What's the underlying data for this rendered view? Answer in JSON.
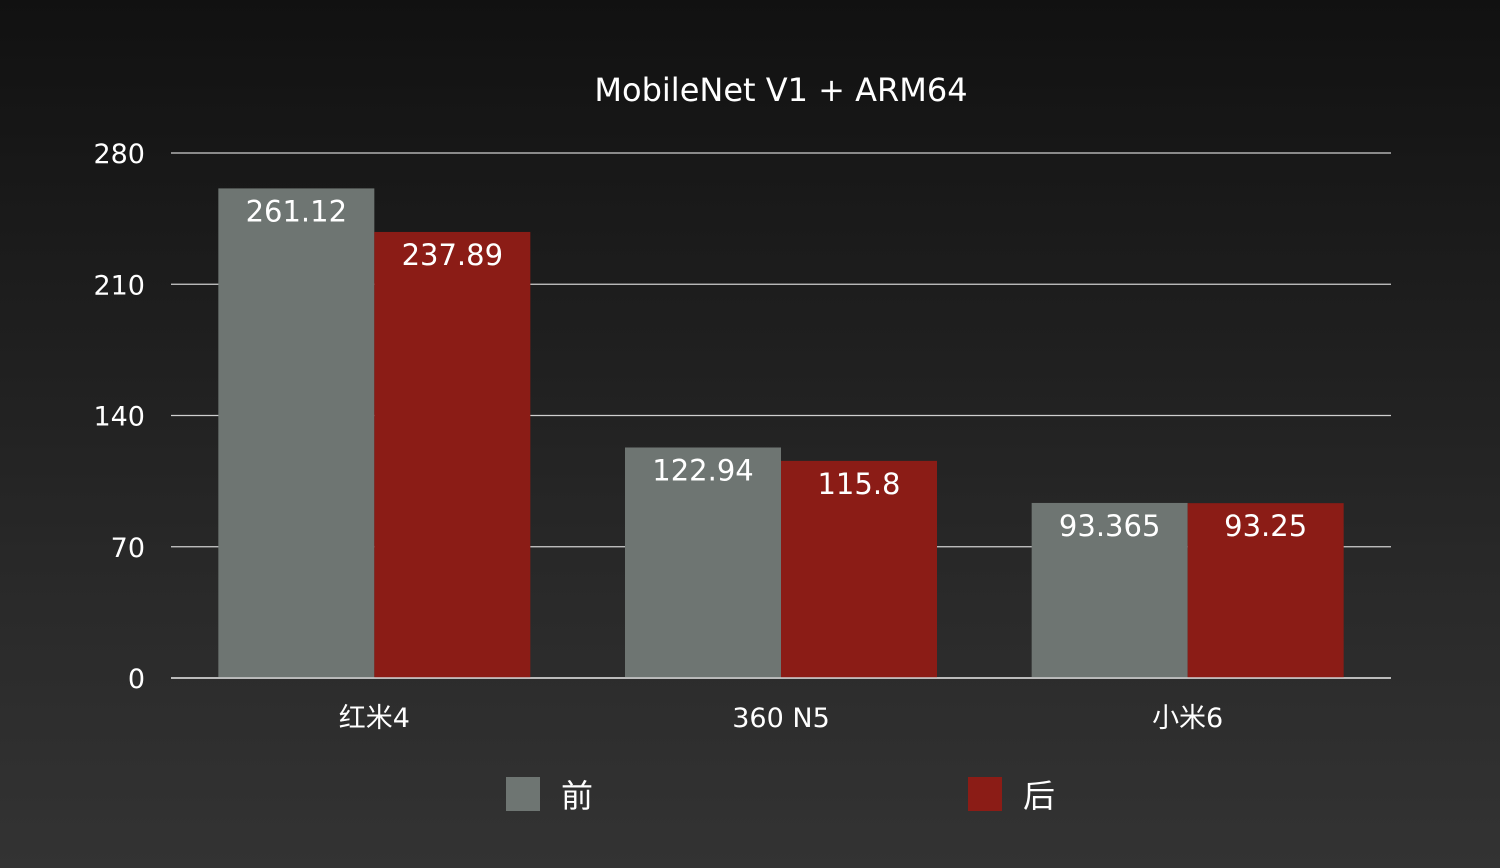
{
  "chart_data": {
    "type": "bar",
    "title": "MobileNet V1 + ARM64",
    "categories": [
      "红米4",
      "360 N5",
      "小米6"
    ],
    "series": [
      {
        "name": "前",
        "values": [
          261.12,
          122.94,
          93.365
        ],
        "labels": [
          "261.12",
          "122.94",
          "93.365"
        ],
        "color": "#6e7572"
      },
      {
        "name": "后",
        "values": [
          237.89,
          115.8,
          93.25
        ],
        "labels": [
          "237.89",
          "115.8",
          "93.25"
        ],
        "color": "#8b1c16"
      }
    ],
    "yticks": [
      "0",
      "70",
      "140",
      "210",
      "280"
    ],
    "ylim": [
      0,
      280
    ],
    "grid": true,
    "legend": "bottom",
    "xlabel": "",
    "ylabel": ""
  }
}
